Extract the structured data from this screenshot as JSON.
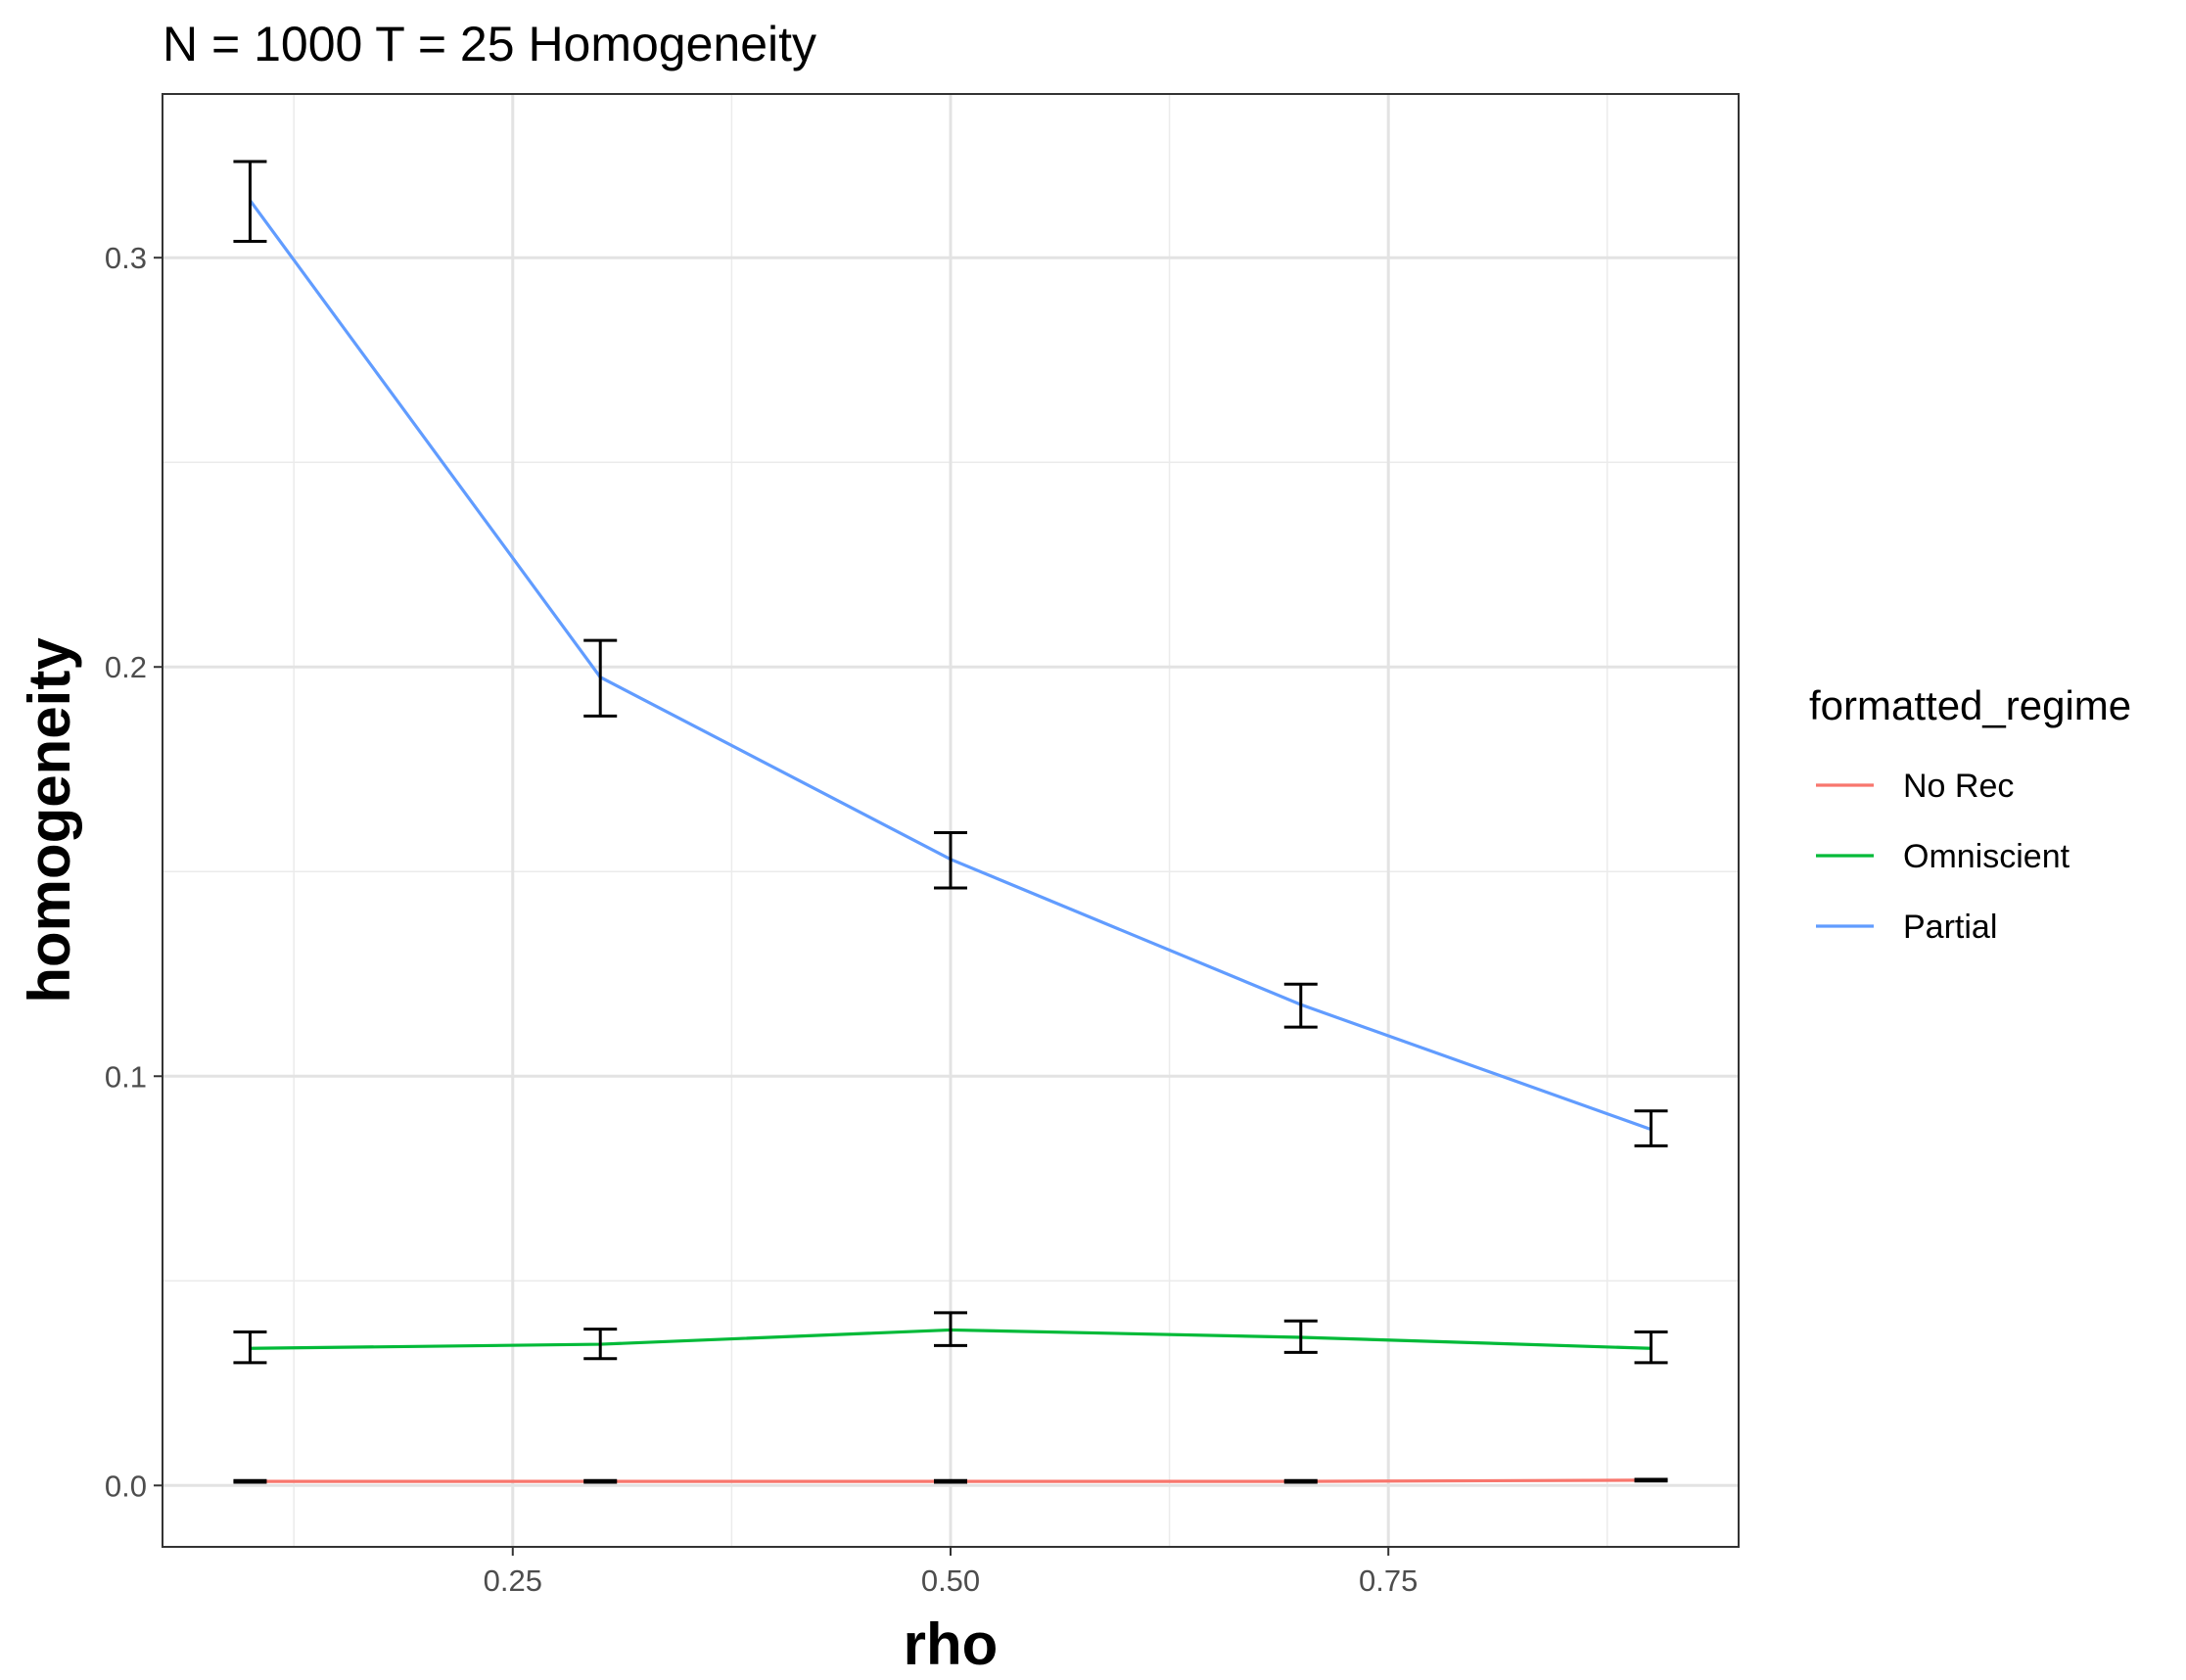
{
  "chart_data": {
    "type": "line",
    "title": "N = 1000 T = 25 Homogeneity",
    "xlabel": "rho",
    "ylabel": "homogeneity",
    "x": [
      0.1,
      0.3,
      0.5,
      0.7,
      0.9
    ],
    "xlim": [
      0.05,
      0.95
    ],
    "ylim": [
      -0.015,
      0.34
    ],
    "x_ticks": [
      0.25,
      0.5,
      0.75
    ],
    "x_tick_labels": [
      "0.25",
      "0.50",
      "0.75"
    ],
    "y_ticks": [
      0.0,
      0.1,
      0.2,
      0.3
    ],
    "y_tick_labels": [
      "0.0",
      "0.1",
      "0.2",
      "0.3"
    ],
    "grid": true,
    "legend": {
      "title": "formatted_regime",
      "placement": "right"
    },
    "series": [
      {
        "name": "No Rec",
        "color": "#F8766D",
        "values": [
          0.001,
          0.001,
          0.001,
          0.001,
          0.0013
        ],
        "err_low": [
          0.0008,
          0.0008,
          0.0008,
          0.0008,
          0.0011
        ],
        "err_high": [
          0.0012,
          0.0012,
          0.0012,
          0.0012,
          0.0015
        ]
      },
      {
        "name": "Omniscient",
        "color": "#00BA38",
        "values": [
          0.0335,
          0.0345,
          0.038,
          0.0362,
          0.0335
        ],
        "err_low": [
          0.03,
          0.031,
          0.0342,
          0.0325,
          0.03
        ],
        "err_high": [
          0.0375,
          0.0382,
          0.0422,
          0.0402,
          0.0375
        ]
      },
      {
        "name": "Partial",
        "color": "#619CFF",
        "values": [
          0.314,
          0.1975,
          0.153,
          0.1175,
          0.087
        ],
        "err_low": [
          0.304,
          0.188,
          0.146,
          0.112,
          0.083
        ],
        "err_high": [
          0.3235,
          0.2065,
          0.1595,
          0.1225,
          0.0915
        ]
      }
    ]
  }
}
